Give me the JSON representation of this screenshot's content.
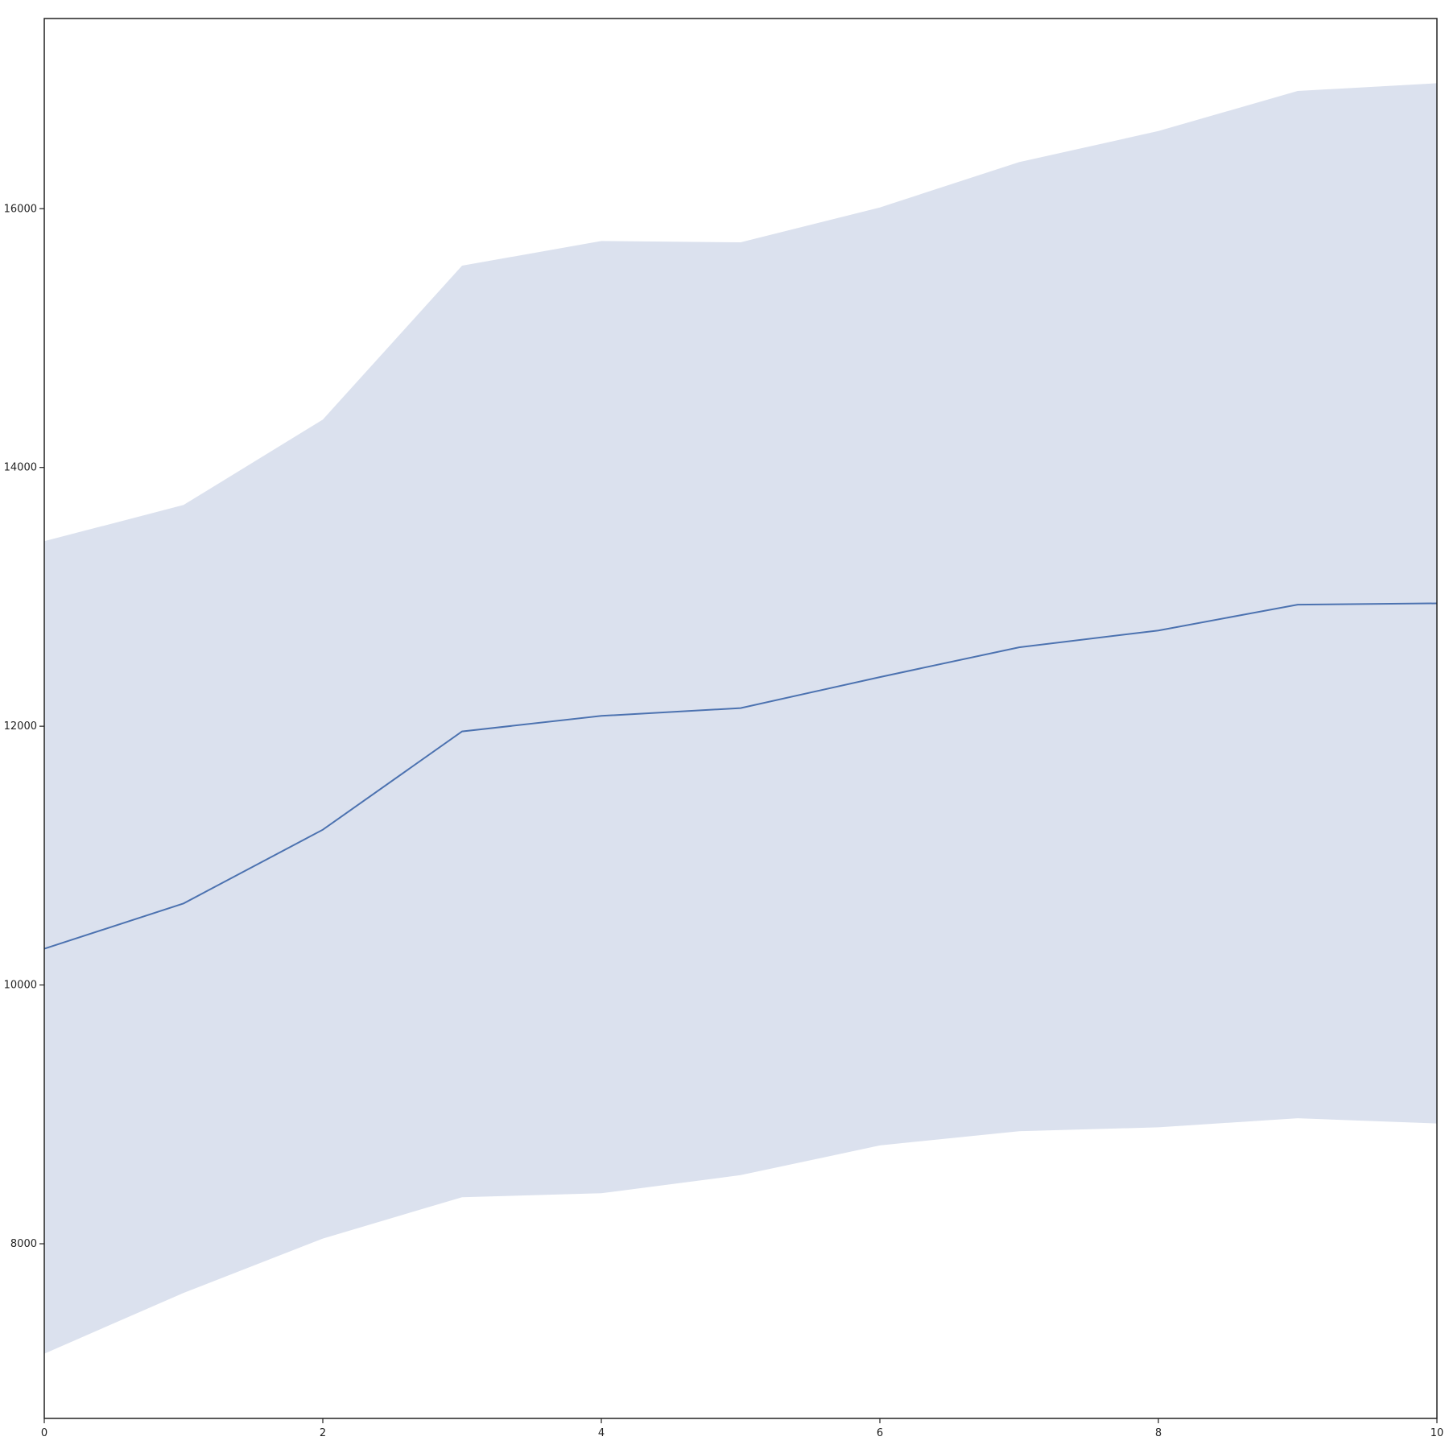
{
  "chart_data": {
    "type": "area",
    "title": "",
    "xlabel": "",
    "ylabel": "",
    "x": [
      0,
      1,
      2,
      3,
      4,
      5,
      6,
      7,
      8,
      9,
      10
    ],
    "xlim": [
      0,
      10
    ],
    "ylim": [
      6650,
      17470
    ],
    "xticks": [
      0,
      2,
      4,
      6,
      8,
      10
    ],
    "yticks": [
      8000,
      10000,
      12000,
      14000,
      16000
    ],
    "grid": false,
    "legend": "none",
    "series": [
      {
        "values": [
          10280,
          10630,
          11200,
          11960,
          12080,
          12140,
          12380,
          12610,
          12740,
          12940,
          12950
        ],
        "lower": [
          7150,
          7620,
          8040,
          8360,
          8390,
          8530,
          8760,
          8870,
          8900,
          8970,
          8930
        ],
        "upper": [
          13430,
          13710,
          14370,
          15560,
          15750,
          15740,
          16010,
          16360,
          16600,
          16910,
          16970
        ],
        "line_color": "#4c72b0",
        "band_color": "#dbe1ee"
      }
    ]
  }
}
